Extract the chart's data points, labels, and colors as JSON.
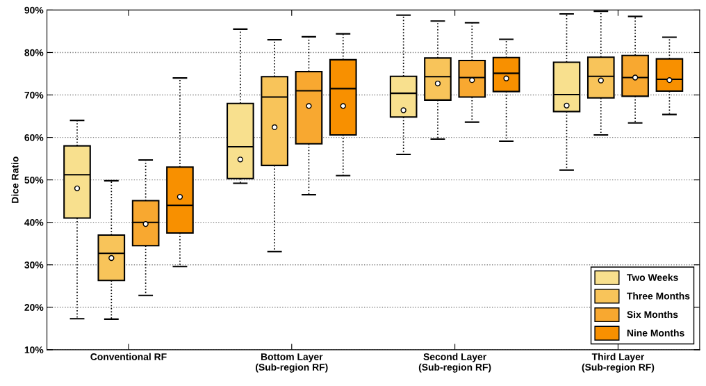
{
  "chart_data": {
    "type": "box",
    "ylabel": "Dice Ratio",
    "categories": [
      "Conventional RF",
      "Bottom Layer\n(Sub-region RF)",
      "Second Layer\n(Sub-region RF)",
      "Third Layer\n(Sub-region RF)"
    ],
    "ylim": [
      10,
      90
    ],
    "yticks": [
      {
        "value": 10,
        "label": "10%"
      },
      {
        "value": 20,
        "label": "20%"
      },
      {
        "value": 30,
        "label": "30%"
      },
      {
        "value": 40,
        "label": "40%"
      },
      {
        "value": 50,
        "label": "50%"
      },
      {
        "value": 60,
        "label": "60%"
      },
      {
        "value": 70,
        "label": "70%"
      },
      {
        "value": 80,
        "label": "80%"
      },
      {
        "value": 90,
        "label": "90%"
      }
    ],
    "grid": "y",
    "legend": "bottom right",
    "series": [
      {
        "name": "Two Weeks",
        "color": "#f8e08e",
        "boxes": [
          {
            "low": 17.3,
            "q1": 41,
            "median": 51.2,
            "q3": 58,
            "high": 64,
            "mean": 48
          },
          {
            "low": 49.2,
            "q1": 50.3,
            "median": 57.8,
            "q3": 68,
            "high": 85.5,
            "mean": 54.8
          },
          {
            "low": 56,
            "q1": 64.8,
            "median": 70.4,
            "q3": 74.4,
            "high": 88.8,
            "mean": 66.4
          },
          {
            "low": 52.3,
            "q1": 66.1,
            "median": 70.1,
            "q3": 77.7,
            "high": 89.1,
            "mean": 67.5
          }
        ]
      },
      {
        "name": "Three Months",
        "color": "#f8c45a",
        "boxes": [
          {
            "low": 17.2,
            "q1": 26.3,
            "median": 32.7,
            "q3": 37,
            "high": 49.8,
            "mean": 31.6
          },
          {
            "low": 33.1,
            "q1": 53.4,
            "median": 69.5,
            "q3": 74.3,
            "high": 83,
            "mean": 62.4
          },
          {
            "low": 59.6,
            "q1": 68.8,
            "median": 74.3,
            "q3": 78.7,
            "high": 87.4,
            "mean": 72.7
          },
          {
            "low": 60.6,
            "q1": 69.3,
            "median": 74.4,
            "q3": 78.9,
            "high": 89.7,
            "mean": 73.4
          }
        ]
      },
      {
        "name": "Six Months",
        "color": "#f8a830",
        "boxes": [
          {
            "low": 22.8,
            "q1": 34.5,
            "median": 40,
            "q3": 45.1,
            "high": 54.7,
            "mean": 39.6
          },
          {
            "low": 46.5,
            "q1": 58.5,
            "median": 71,
            "q3": 75.5,
            "high": 83.7,
            "mean": 67.4
          },
          {
            "low": 63.6,
            "q1": 69.5,
            "median": 74.1,
            "q3": 78.1,
            "high": 87,
            "mean": 73.5
          },
          {
            "low": 63.4,
            "q1": 69.7,
            "median": 74.1,
            "q3": 79.3,
            "high": 88.5,
            "mean": 74.1
          }
        ]
      },
      {
        "name": "Nine Months",
        "color": "#f89000",
        "boxes": [
          {
            "low": 29.6,
            "q1": 37.5,
            "median": 44,
            "q3": 53,
            "high": 74,
            "mean": 46
          },
          {
            "low": 51,
            "q1": 60.6,
            "median": 71.5,
            "q3": 78.3,
            "high": 84.4,
            "mean": 67.4
          },
          {
            "low": 59.1,
            "q1": 70.8,
            "median": 75.1,
            "q3": 78.8,
            "high": 83.1,
            "mean": 73.9
          },
          {
            "low": 65.4,
            "q1": 70.9,
            "median": 73.7,
            "q3": 78.5,
            "high": 83.6,
            "mean": 73.5
          }
        ]
      }
    ]
  }
}
